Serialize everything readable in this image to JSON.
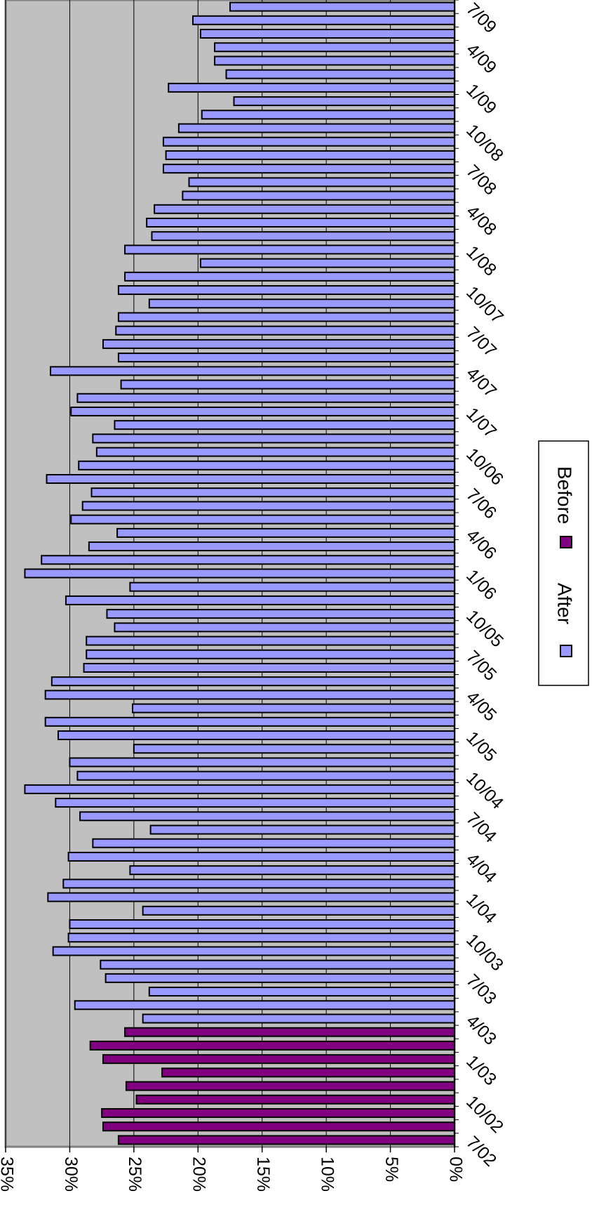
{
  "chart_data": {
    "type": "bar",
    "orientation": "rotated-90-clockwise",
    "title": "",
    "xlabel": "",
    "ylabel": "",
    "ylim": [
      0,
      0.35
    ],
    "grid": true,
    "y_ticks": [
      {
        "value": 0,
        "label": "0%"
      },
      {
        "value": 0.05,
        "label": "5%"
      },
      {
        "value": 0.1,
        "label": "10%"
      },
      {
        "value": 0.15,
        "label": "15%"
      },
      {
        "value": 0.2,
        "label": "20%"
      },
      {
        "value": 0.25,
        "label": "25%"
      },
      {
        "value": 0.3,
        "label": "30%"
      },
      {
        "value": 0.35,
        "label": "35%"
      }
    ],
    "categories": [
      "7/02",
      "8/02",
      "9/02",
      "10/02",
      "11/02",
      "12/02",
      "1/03",
      "2/03",
      "3/03",
      "4/03",
      "5/03",
      "6/03",
      "7/03",
      "8/03",
      "9/03",
      "10/03",
      "11/03",
      "12/03",
      "1/04",
      "2/04",
      "3/04",
      "4/04",
      "5/04",
      "6/04",
      "7/04",
      "8/04",
      "9/04",
      "10/04",
      "11/04",
      "12/04",
      "1/05",
      "2/05",
      "3/05",
      "4/05",
      "5/05",
      "6/05",
      "7/05",
      "8/05",
      "9/05",
      "10/05",
      "11/05",
      "12/05",
      "1/06",
      "2/06",
      "3/06",
      "4/06",
      "5/06",
      "6/06",
      "7/06",
      "8/06",
      "9/06",
      "10/06",
      "11/06",
      "12/06",
      "1/07",
      "2/07",
      "3/07",
      "4/07",
      "5/07",
      "6/07",
      "7/07",
      "8/07",
      "9/07",
      "10/07",
      "11/07",
      "12/07",
      "1/08",
      "2/08",
      "3/08",
      "4/08",
      "5/08",
      "6/08",
      "7/08",
      "8/08",
      "9/08",
      "10/08",
      "11/08",
      "12/08",
      "1/09",
      "2/09",
      "3/09",
      "4/09",
      "5/09",
      "6/09",
      "7/09"
    ],
    "category_labels": [
      {
        "index": 0,
        "label": "7/02"
      },
      {
        "index": 3,
        "label": "10/02"
      },
      {
        "index": 6,
        "label": "1/03"
      },
      {
        "index": 9,
        "label": "4/03"
      },
      {
        "index": 12,
        "label": "7/03"
      },
      {
        "index": 15,
        "label": "10/03"
      },
      {
        "index": 18,
        "label": "1/04"
      },
      {
        "index": 21,
        "label": "4/04"
      },
      {
        "index": 24,
        "label": "7/04"
      },
      {
        "index": 27,
        "label": "10/04"
      },
      {
        "index": 30,
        "label": "1/05"
      },
      {
        "index": 33,
        "label": "4/05"
      },
      {
        "index": 36,
        "label": "7/05"
      },
      {
        "index": 39,
        "label": "10/05"
      },
      {
        "index": 42,
        "label": "1/06"
      },
      {
        "index": 45,
        "label": "4/06"
      },
      {
        "index": 48,
        "label": "7/06"
      },
      {
        "index": 51,
        "label": "10/06"
      },
      {
        "index": 54,
        "label": "1/07"
      },
      {
        "index": 57,
        "label": "4/07"
      },
      {
        "index": 60,
        "label": "7/07"
      },
      {
        "index": 63,
        "label": "10/07"
      },
      {
        "index": 66,
        "label": "1/08"
      },
      {
        "index": 69,
        "label": "4/08"
      },
      {
        "index": 72,
        "label": "7/08"
      },
      {
        "index": 75,
        "label": "10/08"
      },
      {
        "index": 78,
        "label": "1/09"
      },
      {
        "index": 81,
        "label": "4/09"
      },
      {
        "index": 84,
        "label": "7/09"
      }
    ],
    "values": [
      0.262,
      0.274,
      0.275,
      0.248,
      0.256,
      0.228,
      0.274,
      0.284,
      0.257,
      0.243,
      0.296,
      0.238,
      0.272,
      0.276,
      0.313,
      0.301,
      0.3,
      0.243,
      0.317,
      0.305,
      0.253,
      0.301,
      0.282,
      0.237,
      0.292,
      0.311,
      0.335,
      0.294,
      0.3,
      0.25,
      0.309,
      0.319,
      0.251,
      0.319,
      0.314,
      0.289,
      0.287,
      0.287,
      0.265,
      0.271,
      0.303,
      0.253,
      0.335,
      0.322,
      0.285,
      0.263,
      0.299,
      0.29,
      0.283,
      0.318,
      0.293,
      0.279,
      0.282,
      0.265,
      0.299,
      0.294,
      0.26,
      0.315,
      0.262,
      0.274,
      0.264,
      0.262,
      0.238,
      0.262,
      0.257,
      0.198,
      0.257,
      0.236,
      0.24,
      0.234,
      0.212,
      0.207,
      0.227,
      0.225,
      0.227,
      0.215,
      0.197,
      0.172,
      0.223,
      0.178,
      0.187,
      0.187,
      0.198,
      0.204,
      0.175
    ],
    "before_count": 9,
    "series": [
      {
        "name": "After",
        "color": "#9999ff"
      },
      {
        "name": "Before",
        "color": "#800080"
      }
    ],
    "legend_position": "right",
    "plot_background": "#c0c0c0",
    "gridline_color": "#000000"
  }
}
